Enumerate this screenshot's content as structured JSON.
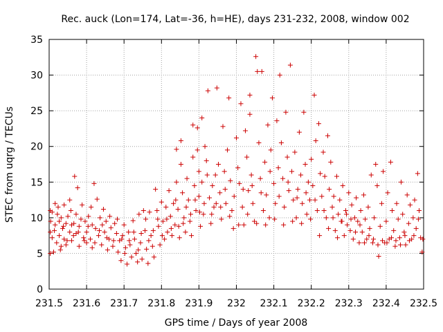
{
  "chart_data": {
    "type": "scatter",
    "title": "Rec. auck (Lon=174, Lat=-36, h=HE), days 231-232, 2008, window 002",
    "xlabel": "GPS time / Days of year 2008",
    "ylabel": "STEC from uqrg / TECUs",
    "xlim": [
      231.5,
      232.5
    ],
    "ylim": [
      0,
      35
    ],
    "x_ticks": [
      "231.5",
      "231.6",
      "231.7",
      "231.8",
      "231.9",
      "232",
      "232.1",
      "232.2",
      "232.3",
      "232.4",
      "232.5"
    ],
    "y_ticks": [
      "0",
      "5",
      "10",
      "15",
      "20",
      "25",
      "30",
      "35"
    ],
    "grid": true,
    "marker": "plus",
    "color": "#cc0000",
    "points": [
      [
        231.503,
        11.0
      ],
      [
        231.503,
        8.0
      ],
      [
        231.503,
        5.0
      ],
      [
        231.508,
        10.8
      ],
      [
        231.508,
        7.2
      ],
      [
        231.512,
        5.2
      ],
      [
        231.516,
        12.0
      ],
      [
        231.516,
        9.0
      ],
      [
        231.52,
        6.5
      ],
      [
        231.524,
        11.5
      ],
      [
        231.527,
        9.5
      ],
      [
        231.527,
        7.5
      ],
      [
        231.532,
        10.0
      ],
      [
        231.532,
        6.0
      ],
      [
        231.536,
        8.5
      ],
      [
        231.54,
        11.8
      ],
      [
        231.54,
        7.0
      ],
      [
        231.545,
        9.2
      ],
      [
        231.545,
        6.2
      ],
      [
        231.55,
        10.2
      ],
      [
        231.555,
        8.0
      ],
      [
        231.555,
        12.5
      ],
      [
        231.56,
        9.0
      ],
      [
        231.56,
        6.8
      ],
      [
        231.565,
        7.5
      ],
      [
        231.568,
        15.8
      ],
      [
        231.572,
        10.5
      ],
      [
        231.572,
        7.8
      ],
      [
        231.576,
        14.2
      ],
      [
        231.58,
        8.8
      ],
      [
        231.58,
        6.0
      ],
      [
        231.585,
        9.8
      ],
      [
        231.588,
        11.8
      ],
      [
        231.592,
        7.2
      ],
      [
        231.596,
        9.5
      ],
      [
        231.6,
        8.0
      ],
      [
        231.6,
        6.5
      ],
      [
        231.605,
        10.2
      ],
      [
        231.61,
        7.0
      ],
      [
        231.615,
        9.0
      ],
      [
        231.615,
        5.8
      ],
      [
        231.62,
        14.8
      ],
      [
        231.624,
        8.5
      ],
      [
        231.628,
        12.6
      ],
      [
        231.632,
        7.5
      ],
      [
        231.636,
        10.0
      ],
      [
        231.64,
        6.2
      ],
      [
        231.645,
        11.2
      ],
      [
        231.648,
        8.0
      ],
      [
        231.652,
        9.5
      ],
      [
        231.656,
        5.5
      ],
      [
        231.66,
        7.0
      ],
      [
        231.665,
        8.6
      ],
      [
        231.67,
        6.0
      ],
      [
        231.675,
        9.2
      ],
      [
        231.68,
        7.8
      ],
      [
        231.684,
        5.2
      ],
      [
        231.688,
        6.8
      ],
      [
        231.692,
        4.0
      ],
      [
        231.696,
        7.5
      ],
      [
        231.7,
        9.0
      ],
      [
        231.704,
        5.8
      ],
      [
        231.708,
        3.5
      ],
      [
        231.712,
        8.0
      ],
      [
        231.716,
        6.2
      ],
      [
        231.72,
        4.5
      ],
      [
        231.724,
        9.6
      ],
      [
        231.728,
        7.0
      ],
      [
        231.732,
        5.0
      ],
      [
        231.736,
        3.8
      ],
      [
        231.74,
        10.5
      ],
      [
        231.744,
        6.5
      ],
      [
        231.748,
        4.2
      ],
      [
        231.752,
        11.0
      ],
      [
        231.756,
        8.2
      ],
      [
        231.76,
        5.6
      ],
      [
        231.764,
        3.6
      ],
      [
        231.768,
        10.8
      ],
      [
        231.772,
        7.5
      ],
      [
        231.776,
        6.0
      ],
      [
        231.78,
        4.5
      ],
      [
        231.784,
        14.0
      ],
      [
        231.788,
        11.0
      ],
      [
        231.792,
        8.8
      ],
      [
        231.796,
        6.2
      ],
      [
        231.8,
        12.2
      ],
      [
        231.804,
        9.5
      ],
      [
        231.808,
        7.0
      ],
      [
        231.812,
        11.5
      ],
      [
        231.816,
        8.0
      ],
      [
        231.82,
        13.8
      ],
      [
        231.824,
        10.2
      ],
      [
        231.828,
        7.5
      ],
      [
        231.832,
        12.0
      ],
      [
        231.836,
        9.0
      ],
      [
        231.84,
        19.6
      ],
      [
        231.84,
        15.0
      ],
      [
        231.844,
        11.2
      ],
      [
        231.848,
        7.2
      ],
      [
        231.852,
        17.5
      ],
      [
        231.852,
        20.8
      ],
      [
        231.856,
        13.5
      ],
      [
        231.86,
        10.0
      ],
      [
        231.864,
        8.0
      ],
      [
        231.868,
        15.5
      ],
      [
        231.872,
        12.5
      ],
      [
        231.876,
        9.5
      ],
      [
        231.88,
        7.5
      ],
      [
        231.884,
        23.0
      ],
      [
        231.884,
        18.5
      ],
      [
        231.888,
        14.5
      ],
      [
        231.892,
        11.0
      ],
      [
        231.896,
        22.6
      ],
      [
        231.896,
        19.5
      ],
      [
        231.9,
        16.5
      ],
      [
        231.9,
        13.0
      ],
      [
        231.904,
        8.8
      ],
      [
        231.908,
        24.0
      ],
      [
        231.908,
        15.0
      ],
      [
        231.912,
        10.5
      ],
      [
        231.916,
        20.0
      ],
      [
        231.92,
        18.0
      ],
      [
        231.924,
        27.8
      ],
      [
        231.928,
        12.8
      ],
      [
        231.932,
        9.2
      ],
      [
        231.936,
        14.5
      ],
      [
        231.94,
        11.5
      ],
      [
        231.944,
        16.0
      ],
      [
        231.948,
        28.2
      ],
      [
        231.952,
        17.5
      ],
      [
        231.956,
        13.5
      ],
      [
        231.96,
        9.8
      ],
      [
        231.964,
        22.8
      ],
      [
        231.968,
        16.5
      ],
      [
        231.972,
        12.0
      ],
      [
        231.976,
        19.5
      ],
      [
        231.98,
        26.8
      ],
      [
        231.984,
        15.2
      ],
      [
        231.988,
        11.0
      ],
      [
        231.992,
        8.5
      ],
      [
        232.0,
        21.2
      ],
      [
        232.004,
        17.0
      ],
      [
        232.008,
        14.8
      ],
      [
        232.012,
        26.0
      ],
      [
        232.016,
        11.5
      ],
      [
        232.02,
        9.0
      ],
      [
        232.024,
        22.2
      ],
      [
        232.028,
        18.5
      ],
      [
        232.032,
        13.8
      ],
      [
        232.036,
        27.2
      ],
      [
        232.036,
        24.5
      ],
      [
        232.04,
        16.0
      ],
      [
        232.044,
        12.0
      ],
      [
        232.048,
        9.5
      ],
      [
        232.052,
        32.6
      ],
      [
        232.056,
        30.5
      ],
      [
        232.06,
        20.5
      ],
      [
        232.064,
        15.5
      ],
      [
        232.068,
        30.5
      ],
      [
        232.072,
        11.0
      ],
      [
        232.076,
        17.8
      ],
      [
        232.08,
        13.2
      ],
      [
        232.084,
        23.0
      ],
      [
        232.088,
        10.0
      ],
      [
        232.092,
        19.5
      ],
      [
        232.096,
        26.8
      ],
      [
        232.1,
        14.8
      ],
      [
        232.104,
        12.0
      ],
      [
        232.108,
        23.6
      ],
      [
        232.112,
        17.0
      ],
      [
        232.116,
        30.0
      ],
      [
        232.12,
        20.5
      ],
      [
        232.124,
        15.5
      ],
      [
        232.128,
        11.5
      ],
      [
        232.132,
        24.8
      ],
      [
        232.136,
        18.5
      ],
      [
        232.14,
        13.8
      ],
      [
        232.144,
        31.4
      ],
      [
        232.148,
        16.5
      ],
      [
        232.152,
        12.5
      ],
      [
        232.156,
        19.2
      ],
      [
        232.16,
        10.0
      ],
      [
        232.164,
        14.0
      ],
      [
        232.168,
        22.0
      ],
      [
        232.172,
        16.0
      ],
      [
        232.176,
        12.0
      ],
      [
        232.18,
        24.8
      ],
      [
        232.184,
        17.5
      ],
      [
        232.188,
        10.5
      ],
      [
        232.192,
        15.0
      ],
      [
        232.196,
        12.5
      ],
      [
        232.2,
        18.2
      ],
      [
        232.204,
        14.5
      ],
      [
        232.208,
        27.2
      ],
      [
        232.212,
        20.8
      ],
      [
        232.216,
        11.0
      ],
      [
        232.22,
        23.2
      ],
      [
        232.224,
        16.2
      ],
      [
        232.228,
        13.0
      ],
      [
        232.232,
        19.2
      ],
      [
        232.236,
        15.8
      ],
      [
        232.24,
        10.0
      ],
      [
        232.244,
        21.5
      ],
      [
        232.248,
        14.0
      ],
      [
        232.252,
        17.8
      ],
      [
        232.256,
        11.5
      ],
      [
        232.26,
        13.0
      ],
      [
        232.264,
        8.2
      ],
      [
        232.268,
        15.8
      ],
      [
        232.272,
        10.5
      ],
      [
        232.276,
        12.5
      ],
      [
        232.28,
        9.5
      ],
      [
        232.284,
        14.5
      ],
      [
        232.288,
        7.5
      ],
      [
        232.292,
        11.0
      ],
      [
        232.296,
        9.0
      ],
      [
        232.3,
        13.5
      ],
      [
        232.304,
        8.2
      ],
      [
        232.308,
        11.8
      ],
      [
        232.312,
        7.0
      ],
      [
        232.316,
        10.0
      ],
      [
        232.32,
        12.8
      ],
      [
        232.324,
        9.5
      ],
      [
        232.328,
        6.5
      ],
      [
        232.332,
        11.0
      ],
      [
        232.336,
        8.0
      ],
      [
        232.34,
        13.2
      ],
      [
        232.344,
        9.8
      ],
      [
        232.348,
        7.0
      ],
      [
        232.352,
        11.5
      ],
      [
        232.356,
        8.5
      ],
      [
        232.36,
        16.0
      ],
      [
        232.364,
        6.5
      ],
      [
        232.368,
        10.0
      ],
      [
        232.372,
        17.5
      ],
      [
        232.376,
        14.5
      ],
      [
        232.38,
        4.6
      ],
      [
        232.384,
        8.8
      ],
      [
        232.388,
        12.0
      ],
      [
        232.392,
        16.5
      ],
      [
        232.396,
        6.5
      ],
      [
        232.4,
        9.5
      ],
      [
        232.404,
        13.5
      ],
      [
        232.408,
        7.0
      ],
      [
        232.412,
        17.8
      ],
      [
        232.416,
        11.0
      ],
      [
        232.42,
        8.2
      ],
      [
        232.424,
        6.0
      ],
      [
        232.428,
        12.0
      ],
      [
        232.432,
        9.8
      ],
      [
        232.436,
        7.2
      ],
      [
        232.44,
        15.0
      ],
      [
        232.444,
        10.5
      ],
      [
        232.448,
        8.0
      ],
      [
        232.452,
        6.2
      ],
      [
        232.456,
        13.2
      ],
      [
        232.46,
        9.2
      ],
      [
        232.464,
        11.8
      ],
      [
        232.468,
        7.0
      ],
      [
        232.472,
        10.0
      ],
      [
        232.476,
        12.5
      ],
      [
        232.48,
        8.5
      ],
      [
        232.484,
        16.2
      ],
      [
        232.488,
        11.0
      ],
      [
        232.492,
        7.2
      ],
      [
        232.496,
        5.2
      ],
      [
        231.504,
        9.5
      ],
      [
        231.514,
        8.2
      ],
      [
        231.522,
        10.5
      ],
      [
        231.53,
        5.5
      ],
      [
        231.538,
        8.8
      ],
      [
        231.548,
        6.8
      ],
      [
        231.558,
        11.0
      ],
      [
        231.566,
        9.2
      ],
      [
        231.578,
        8.0
      ],
      [
        231.594,
        6.8
      ],
      [
        231.604,
        8.8
      ],
      [
        231.612,
        11.5
      ],
      [
        231.622,
        6.5
      ],
      [
        231.634,
        8.2
      ],
      [
        231.642,
        9.0
      ],
      [
        231.654,
        7.2
      ],
      [
        231.662,
        10.2
      ],
      [
        231.672,
        6.8
      ],
      [
        231.682,
        9.8
      ],
      [
        231.694,
        7.0
      ],
      [
        231.702,
        5.0
      ],
      [
        231.714,
        6.8
      ],
      [
        231.726,
        8.0
      ],
      [
        231.738,
        5.5
      ],
      [
        231.746,
        7.8
      ],
      [
        231.758,
        9.8
      ],
      [
        231.766,
        6.8
      ],
      [
        231.778,
        8.2
      ],
      [
        231.79,
        9.8
      ],
      [
        231.802,
        7.5
      ],
      [
        231.814,
        9.8
      ],
      [
        231.826,
        8.5
      ],
      [
        231.838,
        12.5
      ],
      [
        231.846,
        8.8
      ],
      [
        231.858,
        9.2
      ],
      [
        231.866,
        11.5
      ],
      [
        231.878,
        10.5
      ],
      [
        231.89,
        12.5
      ],
      [
        231.902,
        10.8
      ],
      [
        231.914,
        12.0
      ],
      [
        231.922,
        16.0
      ],
      [
        231.934,
        10.5
      ],
      [
        231.946,
        12.0
      ],
      [
        231.958,
        11.5
      ],
      [
        231.97,
        14.0
      ],
      [
        231.982,
        10.2
      ],
      [
        231.994,
        13.0
      ],
      [
        232.006,
        9.0
      ],
      [
        232.018,
        14.0
      ],
      [
        232.03,
        10.5
      ],
      [
        232.042,
        14.5
      ],
      [
        232.054,
        9.2
      ],
      [
        232.066,
        13.5
      ],
      [
        232.078,
        9.0
      ],
      [
        232.09,
        16.5
      ],
      [
        232.102,
        9.8
      ],
      [
        232.114,
        13.0
      ],
      [
        232.126,
        9.0
      ],
      [
        232.138,
        15.0
      ],
      [
        232.15,
        9.5
      ],
      [
        232.162,
        12.8
      ],
      [
        232.174,
        9.2
      ],
      [
        232.186,
        13.5
      ],
      [
        232.198,
        9.8
      ],
      [
        232.21,
        12.5
      ],
      [
        232.222,
        7.5
      ],
      [
        232.234,
        11.0
      ],
      [
        232.246,
        8.5
      ],
      [
        232.258,
        10.0
      ],
      [
        232.27,
        7.2
      ],
      [
        232.282,
        9.5
      ],
      [
        232.294,
        10.5
      ],
      [
        232.306,
        9.8
      ],
      [
        232.318,
        8.0
      ],
      [
        232.33,
        9.0
      ],
      [
        232.342,
        6.5
      ],
      [
        232.354,
        7.5
      ],
      [
        232.366,
        7.0
      ],
      [
        232.378,
        6.2
      ],
      [
        232.39,
        6.8
      ],
      [
        232.402,
        6.5
      ],
      [
        232.414,
        7.2
      ],
      [
        232.426,
        6.8
      ],
      [
        232.438,
        6.2
      ],
      [
        232.45,
        7.5
      ],
      [
        232.462,
        6.8
      ],
      [
        232.474,
        7.5
      ],
      [
        232.486,
        9.8
      ],
      [
        232.498,
        7.0
      ]
    ]
  }
}
